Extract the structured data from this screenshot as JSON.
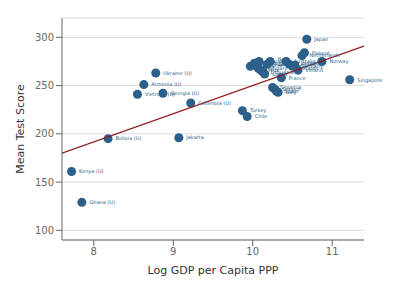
{
  "chart_data": {
    "type": "scatter",
    "title": "",
    "xlabel": "Log GDP per Capita PPP",
    "ylabel": "Mean Test Score",
    "xlim": [
      7.6,
      11.4
    ],
    "ylim": [
      90,
      320
    ],
    "xticks": [
      8,
      9,
      10,
      11
    ],
    "yticks": [
      100,
      150,
      200,
      250,
      300
    ],
    "grid": "y",
    "series": [
      {
        "type": "scatter",
        "color": "#2c5f8a",
        "x": [
          7.72,
          7.85,
          8.18,
          8.55,
          8.63,
          8.78,
          8.87,
          9.07,
          9.22,
          9.87,
          9.93,
          9.97,
          10.02,
          10.05,
          10.07,
          10.08,
          10.1,
          10.13,
          10.15,
          10.18,
          10.22,
          10.25,
          10.28,
          10.3,
          10.32,
          10.36,
          10.42,
          10.46,
          10.5,
          10.53,
          10.57,
          10.62,
          10.65,
          10.68,
          10.87,
          11.22
        ],
        "values": [
          161,
          129,
          195,
          241,
          251,
          263,
          242,
          196,
          232,
          224,
          218,
          270,
          273,
          271,
          268,
          275,
          266,
          264,
          262,
          272,
          275,
          248,
          246,
          244,
          243,
          258,
          275,
          272,
          270,
          271,
          266,
          281,
          284,
          298,
          275,
          256
        ],
        "annotations": [
          "Kenya (U)",
          "Ghana (U)",
          "Bolivia (U)",
          "Vietnam (U)",
          "Armenia (U)",
          "Ukraine (U)",
          "Georgia (U)",
          "Jakarta",
          "Colombia (U)",
          "Turkey",
          "Chile",
          "Russia",
          "Czech",
          "Estonia",
          "Hungary",
          "Slovak",
          "Hkp.",
          "Lithuania",
          "Latvia",
          "Poland",
          "New Zealand",
          "Slovenia",
          "Greece",
          "Spain",
          "Italy",
          "France",
          "Australia",
          "Canada",
          "Germany",
          "United States",
          "Ireland",
          "Netherlands",
          "Finland",
          "Japan",
          "Norway",
          "Singapore"
        ]
      },
      {
        "type": "line",
        "color": "#8b1a1a",
        "x": [
          7.6,
          11.4
        ],
        "values": [
          180,
          291
        ]
      }
    ]
  }
}
